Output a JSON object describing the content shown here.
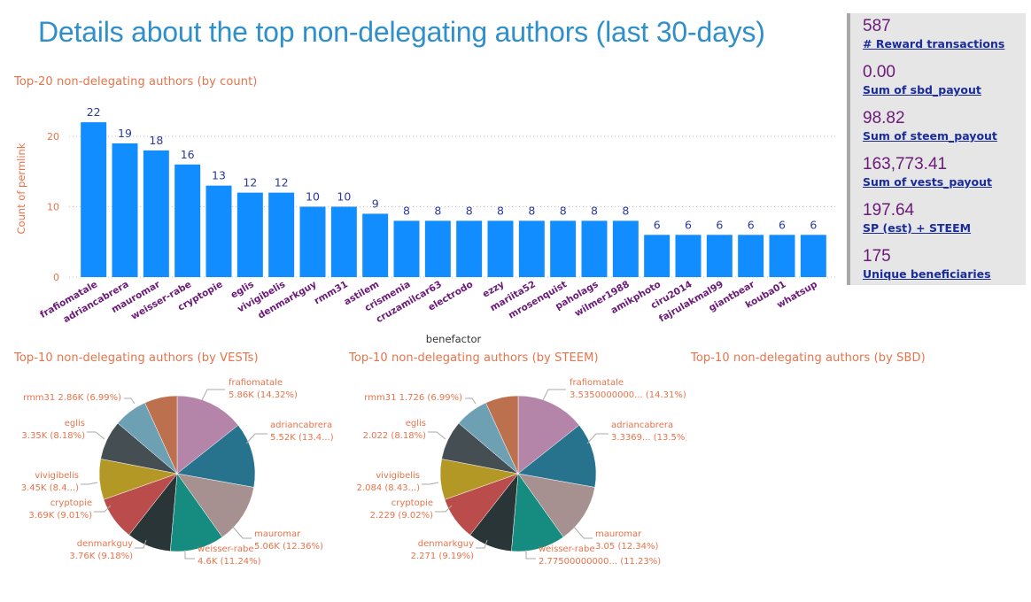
{
  "page": {
    "title": "Details about the top non-delegating authors (last 30-days)"
  },
  "colors": {
    "bar": "#118dff",
    "title": "#2f8fca",
    "chart_title": "#e8734a",
    "tick_label": "#6b1a78",
    "data_label": "#2b3a9e",
    "kpi_value": "#6b1a78",
    "kpi_label": "#1a2c9c",
    "pie_palette": [
      "#b584a9",
      "#27728c",
      "#a69090",
      "#168c80",
      "#293537",
      "#bb4c4c",
      "#b39826",
      "#454e52",
      "#6da0b2",
      "#bd704d"
    ]
  },
  "kpis": [
    {
      "value": "587",
      "label": "# Reward transactions"
    },
    {
      "value": "0.00",
      "label": "Sum of sbd_payout"
    },
    {
      "value": "98.82",
      "label": "Sum of steem_payout"
    },
    {
      "value": "163,773.41",
      "label": "Sum of vests_payout"
    },
    {
      "value": "197.64",
      "label": "SP (est) + STEEM"
    },
    {
      "value": "175",
      "label": "Unique beneficiaries"
    }
  ],
  "chart_data": [
    {
      "type": "bar",
      "title": "Top-20 non-delegating authors (by count)",
      "xlabel": "benefactor",
      "ylabel": "Count of permlink",
      "ylim": [
        0,
        22
      ],
      "yticks": [
        0,
        10,
        20
      ],
      "grid": true,
      "categories": [
        "frafiomatale",
        "adriancabrera",
        "mauromar",
        "weisser-rabe",
        "cryptopie",
        "eglis",
        "vivigibelis",
        "denmarkguy",
        "rmm31",
        "astilem",
        "crismenia",
        "cruzamilcar63",
        "electrodo",
        "ezzy",
        "mariita52",
        "mrosenquist",
        "paholags",
        "wilmer1988",
        "amikphoto",
        "ciru2014",
        "fajrulakmal99",
        "giantbear",
        "kouba01",
        "whatsup"
      ],
      "values": [
        22,
        19,
        18,
        16,
        13,
        12,
        12,
        10,
        10,
        9,
        8,
        8,
        8,
        8,
        8,
        8,
        8,
        8,
        6,
        6,
        6,
        6,
        6,
        6
      ]
    },
    {
      "type": "pie",
      "title": "Top-10 non-delegating authors (by VESTs)",
      "slices": [
        {
          "name": "frafiomatale",
          "label": "5.86K (14.32%)",
          "percent": 14.32
        },
        {
          "name": "adriancabrera",
          "label": "5.52K (13.4...)",
          "percent": 13.49
        },
        {
          "name": "mauromar",
          "label": "5.06K (12.36%)",
          "percent": 12.36
        },
        {
          "name": "weisser-rabe",
          "label": "4.6K (11.24%)",
          "percent": 11.24
        },
        {
          "name": "denmarkguy",
          "label": "3.76K (9.18%)",
          "percent": 9.18
        },
        {
          "name": "cryptopie",
          "label": "3.69K (9.01%)",
          "percent": 9.01
        },
        {
          "name": "vivigibelis",
          "label": "3.45K (8.4...)",
          "percent": 8.43
        },
        {
          "name": "eglis",
          "label": "3.35K (8.18%)",
          "percent": 8.18
        },
        {
          "name": "rmm31",
          "label": "2.86K (6.99%)",
          "percent": 6.99
        },
        {
          "name": "",
          "label": "",
          "percent": 6.8
        }
      ]
    },
    {
      "type": "pie",
      "title": "Top-10 non-delegating authors (by STEEM)",
      "slices": [
        {
          "name": "frafiomatale",
          "label": "3.5350000000... (14.31%)",
          "percent": 14.31
        },
        {
          "name": "adriancabrera",
          "label": "3.3369... (13.5%)",
          "percent": 13.5
        },
        {
          "name": "mauromar",
          "label": "3.05 (12.34%)",
          "percent": 12.34
        },
        {
          "name": "weisser-rabe",
          "label": "2.77500000000... (11.23%)",
          "percent": 11.23
        },
        {
          "name": "denmarkguy",
          "label": "2.271 (9.19%)",
          "percent": 9.19
        },
        {
          "name": "cryptopie",
          "label": "2.229 (9.02%)",
          "percent": 9.02
        },
        {
          "name": "vivigibelis",
          "label": "2.084 (8.43...)",
          "percent": 8.43
        },
        {
          "name": "eglis",
          "label": "2.022 (8.18%)",
          "percent": 8.18
        },
        {
          "name": "rmm31",
          "label": "1.726 (6.99%)",
          "percent": 6.99
        },
        {
          "name": "",
          "label": "",
          "percent": 6.81
        }
      ]
    },
    {
      "type": "pie",
      "title": "Top-10 non-delegating authors (by SBD)",
      "slices": []
    }
  ]
}
